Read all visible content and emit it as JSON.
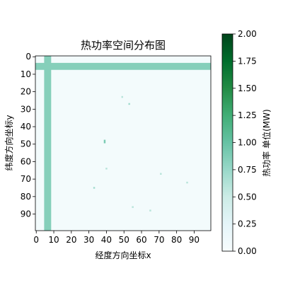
{
  "chart_data": {
    "type": "heatmap",
    "title": "热功率空间分布图",
    "xlabel": "经度方向坐标x",
    "ylabel": "纬度方向坐标y",
    "x_range": [
      0,
      99
    ],
    "y_range": [
      0,
      99
    ],
    "y_inverted": true,
    "x_ticks": [
      "0",
      "10",
      "20",
      "30",
      "40",
      "50",
      "60",
      "70",
      "80",
      "90"
    ],
    "y_ticks": [
      "0",
      "10",
      "20",
      "30",
      "40",
      "50",
      "60",
      "70",
      "80",
      "90"
    ],
    "colormap": "BuGn",
    "background_value": 0.05,
    "bands": [
      {
        "orientation": "vertical",
        "center": 7,
        "width": 4,
        "value": 0.85
      },
      {
        "orientation": "horizontal",
        "center": 6,
        "width": 4,
        "value": 0.85
      }
    ],
    "hotspots": [
      {
        "x": 49,
        "y": 23,
        "value": 0.6
      },
      {
        "x": 53,
        "y": 27,
        "value": 0.7
      },
      {
        "x": 39,
        "y": 48,
        "value": 0.9
      },
      {
        "x": 39,
        "y": 49,
        "value": 0.9
      },
      {
        "x": 40,
        "y": 64,
        "value": 0.6
      },
      {
        "x": 71,
        "y": 67,
        "value": 0.6
      },
      {
        "x": 86,
        "y": 72,
        "value": 0.6
      },
      {
        "x": 33,
        "y": 75,
        "value": 0.7
      },
      {
        "x": 55,
        "y": 86,
        "value": 0.6
      },
      {
        "x": 65,
        "y": 88,
        "value": 0.6
      }
    ],
    "colorbar": {
      "label": "热功率 单位(MW)",
      "vmin": 0,
      "vmax": 2,
      "ticks": [
        "0.00",
        "0.25",
        "0.50",
        "0.75",
        "1.00",
        "1.25",
        "1.50",
        "1.75",
        "2.00"
      ]
    },
    "grid": false,
    "legend": "none"
  }
}
